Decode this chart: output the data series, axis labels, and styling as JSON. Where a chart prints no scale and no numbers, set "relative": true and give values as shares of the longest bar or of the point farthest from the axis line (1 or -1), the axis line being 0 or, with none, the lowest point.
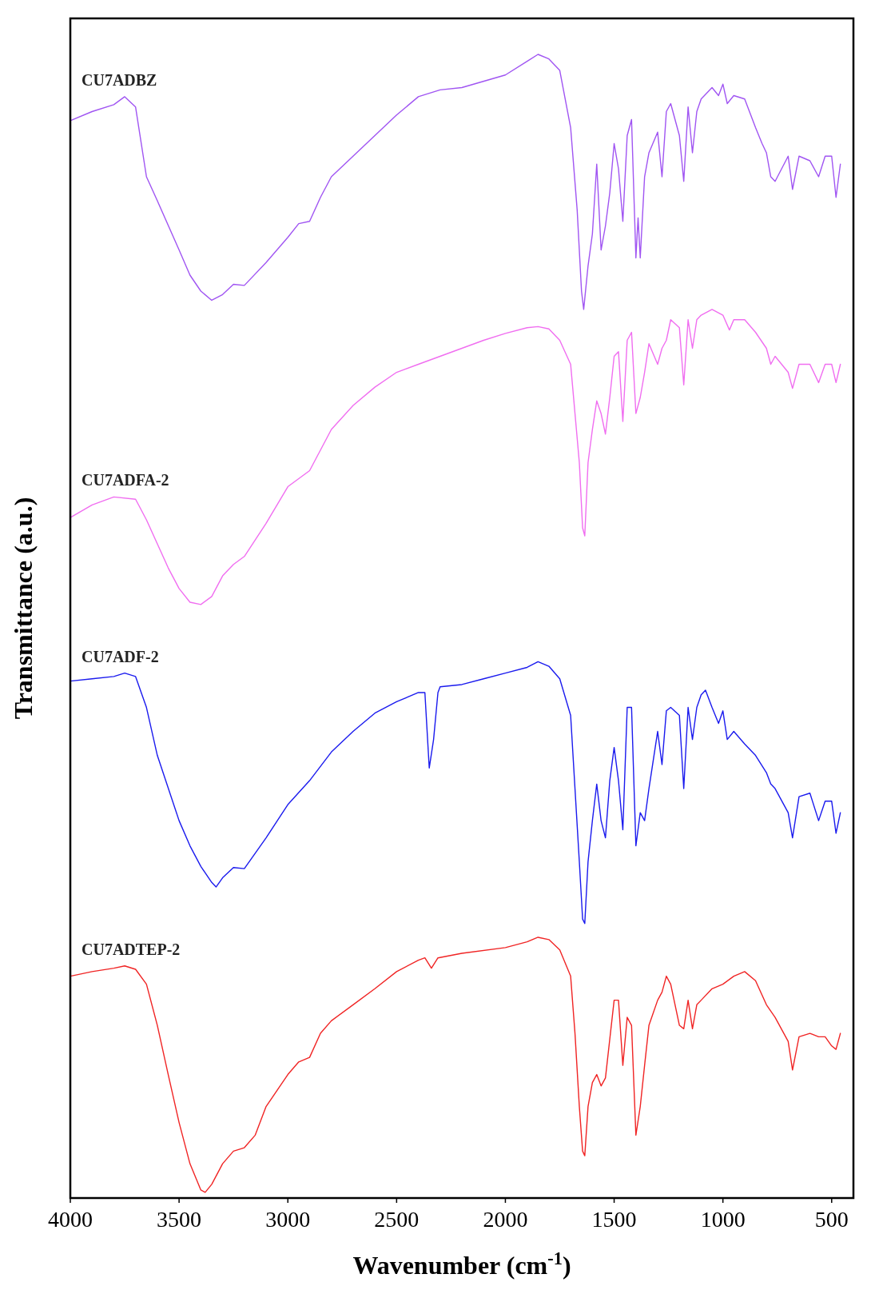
{
  "chart_data": {
    "type": "line",
    "relative": true,
    "xlabel": "Wavenumber (cm$^{-1}$)",
    "ylabel": "Transmittance (a.u.)",
    "xlim": [
      4000,
      400
    ],
    "xticks": [
      4000,
      3500,
      3000,
      2500,
      2000,
      1500,
      1000,
      500
    ],
    "grid": false,
    "marker": "none",
    "line_style": "solid",
    "x": [
      4000,
      3900,
      3800,
      3750,
      3700,
      3650,
      3600,
      3500,
      3450,
      3400,
      3350,
      3300,
      3250,
      3200,
      3100,
      3000,
      2950,
      2900,
      2850,
      2800,
      2700,
      2600,
      2500,
      2400,
      2300,
      2200,
      2000,
      1900,
      1850,
      1800,
      1750,
      1700,
      1670,
      1650,
      1640,
      1620,
      1600,
      1580,
      1560,
      1540,
      1520,
      1500,
      1480,
      1460,
      1440,
      1420,
      1400,
      1390,
      1380,
      1360,
      1340,
      1300,
      1280,
      1260,
      1240,
      1200,
      1180,
      1160,
      1140,
      1120,
      1100,
      1050,
      1020,
      1000,
      980,
      950,
      900,
      850,
      820,
      800,
      780,
      760,
      700,
      680,
      650,
      600,
      560,
      530,
      500,
      480,
      460
    ],
    "series": [
      {
        "name": "CU7ADBZ",
        "color": "#a055f2",
        "values": [
          0.942,
          0.95,
          0.956,
          0.963,
          0.954,
          0.893,
          0.872,
          0.829,
          0.807,
          0.793,
          0.785,
          0.79,
          0.799,
          0.798,
          0.818,
          0.84,
          0.852,
          0.854,
          0.875,
          0.893,
          0.911,
          0.929,
          0.947,
          0.963,
          0.969,
          0.971,
          0.982,
          0.994,
          1.0,
          0.996,
          0.986,
          0.936,
          0.864,
          0.793,
          0.777,
          0.815,
          0.843,
          0.904,
          0.829,
          0.85,
          0.879,
          0.922,
          0.9,
          0.854,
          0.929,
          0.943,
          0.822,
          0.857,
          0.822,
          0.893,
          0.914,
          0.932,
          0.893,
          0.95,
          0.957,
          0.929,
          0.889,
          0.954,
          0.914,
          0.95,
          0.961,
          0.971,
          0.964,
          0.974,
          0.957,
          0.964,
          0.961,
          0.936,
          0.922,
          0.914,
          0.893,
          0.889,
          0.911,
          0.882,
          0.911,
          0.907,
          0.893,
          0.911,
          0.911,
          0.875,
          0.904
        ]
      },
      {
        "name": "CU7ADFA-2",
        "color": "#f06ef0",
        "x": [
          4000,
          3900,
          3800,
          3700,
          3650,
          3600,
          3550,
          3500,
          3450,
          3400,
          3350,
          3300,
          3250,
          3200,
          3100,
          3000,
          2900,
          2800,
          2700,
          2600,
          2500,
          2400,
          2300,
          2200,
          2100,
          2000,
          1900,
          1850,
          1800,
          1750,
          1700,
          1680,
          1660,
          1645,
          1635,
          1620,
          1600,
          1580,
          1560,
          1540,
          1520,
          1500,
          1480,
          1460,
          1440,
          1420,
          1400,
          1380,
          1360,
          1340,
          1300,
          1280,
          1260,
          1240,
          1200,
          1180,
          1160,
          1140,
          1120,
          1100,
          1050,
          1000,
          970,
          950,
          900,
          850,
          800,
          780,
          760,
          700,
          680,
          650,
          600,
          560,
          530,
          500,
          480,
          460
        ],
        "values": [
          0.595,
          0.606,
          0.613,
          0.611,
          0.593,
          0.572,
          0.551,
          0.533,
          0.521,
          0.519,
          0.526,
          0.544,
          0.554,
          0.561,
          0.59,
          0.622,
          0.636,
          0.672,
          0.693,
          0.709,
          0.722,
          0.729,
          0.736,
          0.743,
          0.75,
          0.756,
          0.761,
          0.762,
          0.76,
          0.75,
          0.729,
          0.686,
          0.643,
          0.586,
          0.579,
          0.643,
          0.672,
          0.697,
          0.686,
          0.668,
          0.7,
          0.736,
          0.74,
          0.679,
          0.75,
          0.757,
          0.686,
          0.7,
          0.722,
          0.747,
          0.729,
          0.743,
          0.75,
          0.768,
          0.761,
          0.711,
          0.768,
          0.743,
          0.768,
          0.772,
          0.777,
          0.772,
          0.759,
          0.768,
          0.768,
          0.757,
          0.743,
          0.729,
          0.736,
          0.722,
          0.708,
          0.729,
          0.729,
          0.713,
          0.729,
          0.729,
          0.713,
          0.729
        ]
      },
      {
        "name": "CU7ADF-2",
        "color": "#1a1aee",
        "x": [
          4000,
          3900,
          3800,
          3750,
          3700,
          3650,
          3600,
          3500,
          3450,
          3400,
          3350,
          3330,
          3300,
          3250,
          3200,
          3100,
          3000,
          2900,
          2800,
          2700,
          2600,
          2500,
          2400,
          2370,
          2350,
          2330,
          2310,
          2300,
          2200,
          2100,
          2000,
          1900,
          1850,
          1800,
          1750,
          1700,
          1680,
          1660,
          1645,
          1635,
          1620,
          1600,
          1580,
          1560,
          1540,
          1520,
          1500,
          1480,
          1460,
          1440,
          1420,
          1400,
          1380,
          1360,
          1340,
          1300,
          1280,
          1260,
          1240,
          1200,
          1180,
          1160,
          1140,
          1120,
          1100,
          1080,
          1050,
          1020,
          1000,
          980,
          950,
          900,
          850,
          800,
          780,
          760,
          700,
          680,
          650,
          600,
          560,
          530,
          500,
          480,
          460
        ],
        "values": [
          0.452,
          0.454,
          0.456,
          0.459,
          0.456,
          0.429,
          0.387,
          0.33,
          0.308,
          0.29,
          0.276,
          0.272,
          0.28,
          0.289,
          0.288,
          0.315,
          0.344,
          0.365,
          0.39,
          0.408,
          0.424,
          0.434,
          0.442,
          0.442,
          0.376,
          0.401,
          0.442,
          0.447,
          0.449,
          0.454,
          0.459,
          0.464,
          0.469,
          0.465,
          0.454,
          0.422,
          0.358,
          0.294,
          0.244,
          0.24,
          0.294,
          0.33,
          0.362,
          0.33,
          0.315,
          0.365,
          0.394,
          0.365,
          0.322,
          0.429,
          0.429,
          0.308,
          0.337,
          0.33,
          0.358,
          0.408,
          0.379,
          0.426,
          0.429,
          0.422,
          0.358,
          0.429,
          0.401,
          0.429,
          0.44,
          0.444,
          0.429,
          0.415,
          0.426,
          0.401,
          0.408,
          0.397,
          0.387,
          0.372,
          0.362,
          0.358,
          0.337,
          0.315,
          0.351,
          0.354,
          0.33,
          0.347,
          0.347,
          0.319,
          0.337
        ]
      },
      {
        "name": "CU7ADTEP-2",
        "color": "#f02424",
        "x": [
          4000,
          3900,
          3800,
          3750,
          3700,
          3650,
          3600,
          3550,
          3500,
          3450,
          3400,
          3380,
          3350,
          3300,
          3250,
          3200,
          3150,
          3100,
          3000,
          2950,
          2900,
          2850,
          2800,
          2700,
          2600,
          2500,
          2400,
          2370,
          2340,
          2310,
          2200,
          2000,
          1900,
          1850,
          1800,
          1750,
          1700,
          1680,
          1660,
          1645,
          1635,
          1620,
          1600,
          1580,
          1560,
          1540,
          1500,
          1480,
          1460,
          1440,
          1420,
          1400,
          1380,
          1360,
          1340,
          1300,
          1280,
          1260,
          1240,
          1200,
          1180,
          1160,
          1140,
          1120,
          1100,
          1050,
          1000,
          950,
          900,
          850,
          800,
          760,
          700,
          680,
          650,
          600,
          560,
          530,
          500,
          480,
          460
        ],
        "values": [
          0.194,
          0.198,
          0.201,
          0.203,
          0.2,
          0.187,
          0.151,
          0.108,
          0.066,
          0.03,
          0.007,
          0.005,
          0.012,
          0.03,
          0.041,
          0.044,
          0.055,
          0.08,
          0.108,
          0.119,
          0.123,
          0.144,
          0.155,
          0.169,
          0.183,
          0.198,
          0.208,
          0.21,
          0.201,
          0.21,
          0.214,
          0.219,
          0.224,
          0.228,
          0.226,
          0.217,
          0.194,
          0.144,
          0.08,
          0.041,
          0.037,
          0.08,
          0.101,
          0.108,
          0.098,
          0.105,
          0.173,
          0.173,
          0.116,
          0.158,
          0.151,
          0.055,
          0.08,
          0.116,
          0.151,
          0.173,
          0.18,
          0.194,
          0.187,
          0.151,
          0.148,
          0.173,
          0.148,
          0.169,
          0.173,
          0.183,
          0.187,
          0.194,
          0.198,
          0.19,
          0.169,
          0.158,
          0.137,
          0.112,
          0.141,
          0.144,
          0.141,
          0.141,
          0.133,
          0.13,
          0.144
        ]
      }
    ]
  }
}
